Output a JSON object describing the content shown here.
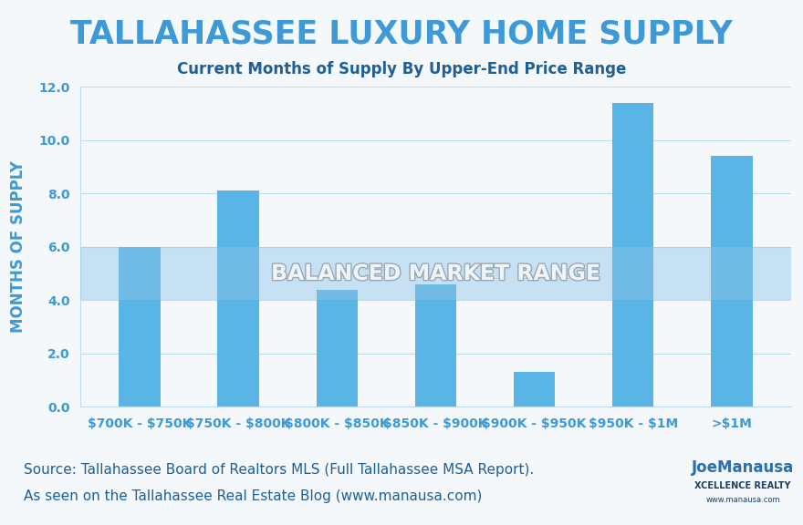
{
  "chart_data": {
    "type": "bar",
    "title": "TALLAHASSEE LUXURY HOME SUPPLY",
    "subtitle": "Current Months of Supply By Upper-End Price Range",
    "y_label": "MONTHS OF SUPPLY",
    "categories": [
      "$700K - $750K",
      "$750K - $800K",
      "$800K - $850K",
      "$850K - $900K",
      "$900K - $950K",
      "$950K - $1M",
      ">$1M"
    ],
    "values": [
      6.0,
      8.1,
      4.4,
      4.6,
      1.3,
      11.4,
      9.4
    ],
    "color": "#5ab4e5",
    "ylim": [
      0,
      12
    ],
    "yticks": [
      {
        "value": 0,
        "label": "0.0"
      },
      {
        "value": 2,
        "label": "2.0"
      },
      {
        "value": 4,
        "label": "4.0"
      },
      {
        "value": 6,
        "label": "6.0"
      },
      {
        "value": 8,
        "label": "8.0"
      },
      {
        "value": 10,
        "label": "10.0"
      },
      {
        "value": 12,
        "label": "12.0"
      }
    ],
    "grid": true,
    "bands": [
      {
        "label": "BALANCED MARKET RANGE",
        "range": [
          4,
          6
        ]
      }
    ],
    "source": [
      "Source: Tallahassee Board of Realtors MLS (Full Tallahassee MSA Report).",
      "As seen on the Tallahassee Real Estate Blog (www.manausa.com)"
    ],
    "logo": [
      "JoeManausa",
      "XCELLENCE REALTY",
      "www.manausa.com"
    ]
  }
}
